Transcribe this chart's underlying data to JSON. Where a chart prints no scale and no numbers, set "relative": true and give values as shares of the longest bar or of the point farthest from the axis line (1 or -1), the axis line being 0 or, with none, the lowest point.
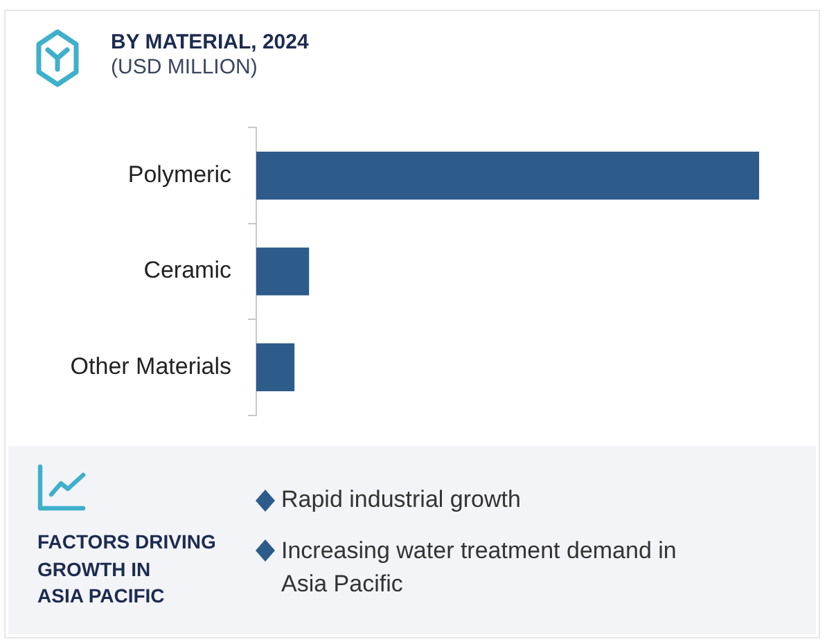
{
  "chart_data": {
    "type": "bar",
    "orientation": "horizontal",
    "title": "BY MATERIAL, 2024",
    "subtitle": "(USD MILLION)",
    "categories": [
      "Polymeric",
      "Ceramic",
      "Other Materials"
    ],
    "values": [
      1,
      0.105,
      0.076
    ],
    "color": "#2d5b8a",
    "relative": true,
    "annotations": [
      "FACTORS DRIVING\nGROWTH IN\nASIA PACIFIC",
      "Rapid industrial growth",
      "Increasing water treatment demand in Asia Pacific"
    ]
  }
}
